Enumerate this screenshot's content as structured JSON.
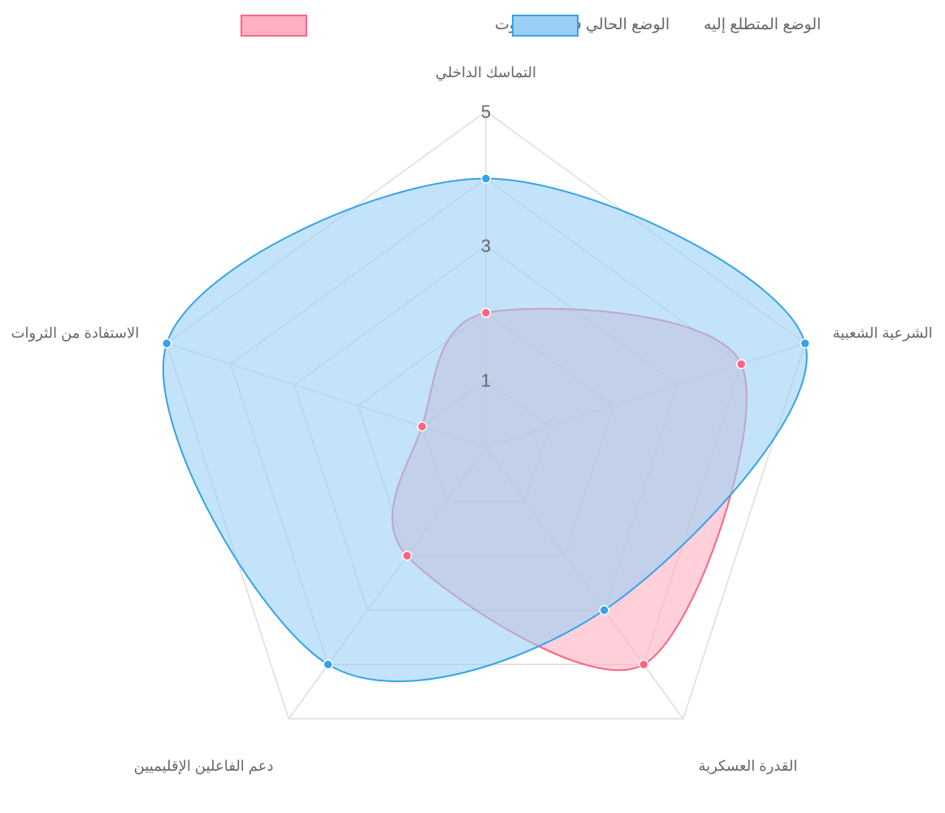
{
  "chart_data": {
    "type": "radar",
    "categories": [
      "التماسك الداخلي",
      "الشرعية الشعبية",
      "القدرة العسكرية",
      "دعم الفاعلين الإقليميين",
      "الاستفادة من الثروات"
    ],
    "series": [
      {
        "name": "الوضع الحالي في حضرموت",
        "values": [
          2,
          4,
          4,
          2,
          1
        ],
        "fill": "#ffb1c1",
        "stroke": "#ff6384"
      },
      {
        "name": "الوضع المتطلع إليه",
        "values": [
          4,
          5,
          3,
          4,
          5
        ],
        "fill": "#9ad0f5",
        "stroke": "#36a2eb"
      }
    ],
    "r_ticks": [
      "1",
      "3",
      "5"
    ],
    "r_range": [
      0,
      5
    ],
    "grid": true,
    "legend_position": "top"
  }
}
